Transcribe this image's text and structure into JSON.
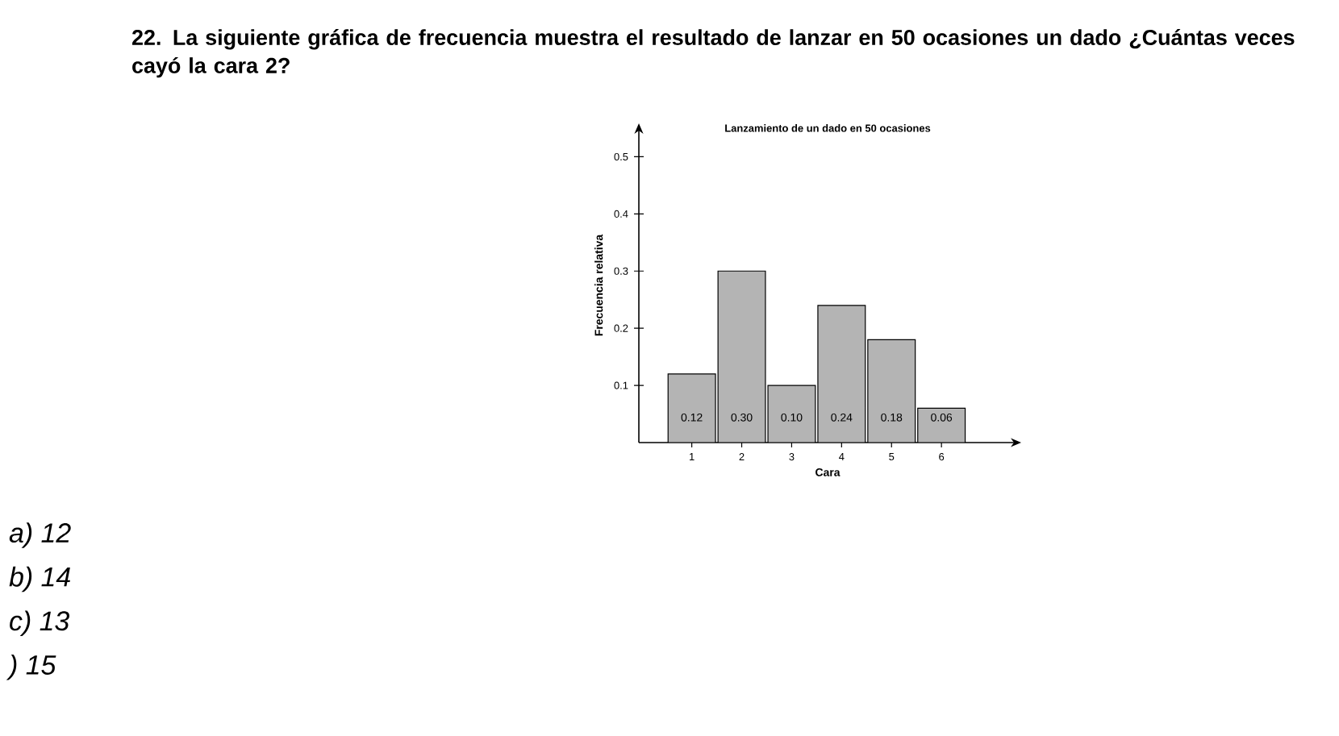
{
  "chart_data": {
    "type": "bar",
    "title": "Lanzamiento de un dado en 50 ocasiones",
    "xlabel": "Cara",
    "ylabel": "Frecuencia relativa",
    "categories": [
      "1",
      "2",
      "3",
      "4",
      "5",
      "6"
    ],
    "values": [
      0.12,
      0.3,
      0.1,
      0.24,
      0.18,
      0.06
    ],
    "value_labels": [
      "0.12",
      "0.30",
      "0.10",
      "0.24",
      "0.18",
      "0.06"
    ],
    "color": "#b4b4b4",
    "ylim": [
      0,
      0.55
    ],
    "yticks": [
      0.1,
      0.2,
      0.3,
      0.4,
      0.5
    ],
    "annotations": [
      "22. La siguiente gráfica de frecuencia muestra el resultado de lanzar en 50 ocasiones un dado ¿Cuántas veces cayó la cara 2?",
      "a) 12",
      "b) 14",
      "c) 13",
      ") 15"
    ]
  }
}
